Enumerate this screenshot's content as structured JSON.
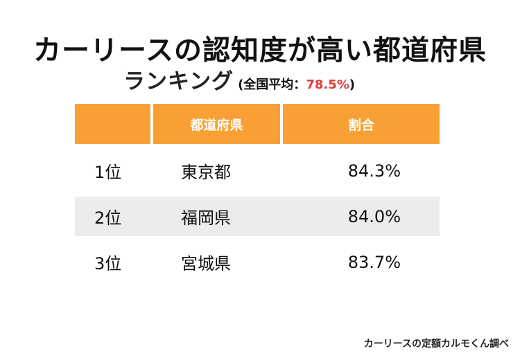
{
  "title": "カーリースの認知度が高い都道府県",
  "subtitle": "ランキング",
  "average_note": {
    "prefix": "(全国平均：",
    "value": "78.5%",
    "suffix": ")"
  },
  "table": {
    "headers": [
      "",
      "都道府県",
      "割合"
    ],
    "rows": [
      {
        "rank": "1位",
        "prefecture": "東京都",
        "percent": "84.3%"
      },
      {
        "rank": "2位",
        "prefecture": "福岡県",
        "percent": "84.0%"
      },
      {
        "rank": "3位",
        "prefecture": "宮城県",
        "percent": "83.7%"
      }
    ]
  },
  "source": "カーリースの定額カルモくん調べ",
  "colors": {
    "header_bg": "#f8a035",
    "header_text": "#ffffff",
    "accent_red": "#e53935",
    "shaded_row": "#ececec"
  }
}
